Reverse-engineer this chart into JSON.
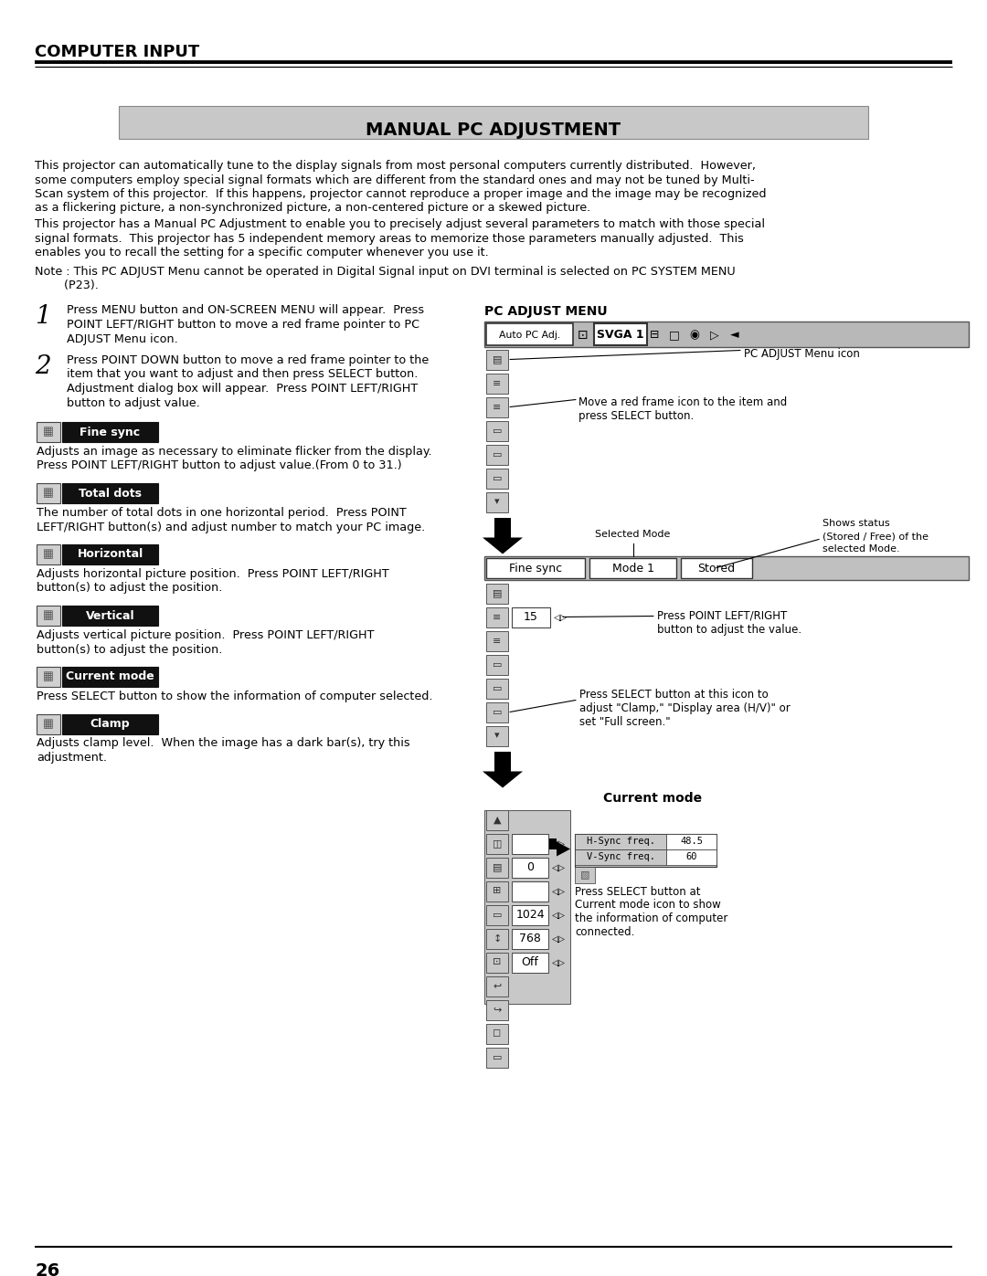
{
  "page_title": "COMPUTER INPUT",
  "section_title": "MANUAL PC ADJUSTMENT",
  "bg_color": "#ffffff",
  "page_number": "26",
  "body1_lines": [
    "This projector can automatically tune to the display signals from most personal computers currently distributed.  However,",
    "some computers employ special signal formats which are different from the standard ones and may not be tuned by Multi-",
    "Scan system of this projector.  If this happens, projector cannot reproduce a proper image and the image may be recognized",
    "as a flickering picture, a non-synchronized picture, a non-centered picture or a skewed picture."
  ],
  "body2_lines": [
    "This projector has a Manual PC Adjustment to enable you to precisely adjust several parameters to match with those special",
    "signal formats.  This projector has 5 independent memory areas to memorize those parameters manually adjusted.  This",
    "enables you to recall the setting for a specific computer whenever you use it."
  ],
  "note_line1": "Note : This PC ADJUST Menu cannot be operated in Digital Signal input on DVI terminal is selected on PC SYSTEM MENU",
  "note_line2": "        (P23).",
  "step1_lines": [
    "Press MENU button and ON-SCREEN MENU will appear.  Press",
    "POINT LEFT/RIGHT button to move a red frame pointer to PC",
    "ADJUST Menu icon."
  ],
  "step2_lines": [
    "Press POINT DOWN button to move a red frame pointer to the",
    "item that you want to adjust and then press SELECT button.",
    "Adjustment dialog box will appear.  Press POINT LEFT/RIGHT",
    "button to adjust value."
  ],
  "items": [
    {
      "label": "Fine sync",
      "desc_lines": [
        "Adjusts an image as necessary to eliminate flicker from the display.",
        "Press POINT LEFT/RIGHT button to adjust value.(From 0 to 31.)"
      ]
    },
    {
      "label": "Total dots",
      "desc_lines": [
        "The number of total dots in one horizontal period.  Press POINT",
        "LEFT/RIGHT button(s) and adjust number to match your PC image."
      ]
    },
    {
      "label": "Horizontal",
      "desc_lines": [
        "Adjusts horizontal picture position.  Press POINT LEFT/RIGHT",
        "button(s) to adjust the position."
      ]
    },
    {
      "label": "Vertical",
      "desc_lines": [
        "Adjusts vertical picture position.  Press POINT LEFT/RIGHT",
        "button(s) to adjust the position."
      ]
    },
    {
      "label": "Current mode",
      "desc_lines": [
        "Press SELECT button to show the information of computer selected."
      ]
    },
    {
      "label": "Clamp",
      "desc_lines": [
        "Adjusts clamp level.  When the image has a dark bar(s), try this",
        "adjustment."
      ]
    }
  ]
}
